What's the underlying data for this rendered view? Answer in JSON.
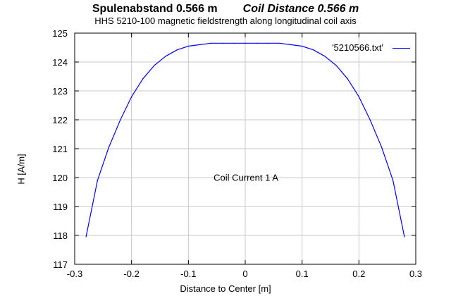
{
  "title": {
    "german": "Spulenabstand 0.566 m",
    "english": "Coil Distance 0.566 m"
  },
  "chart_data": {
    "type": "line",
    "title": "Spulenabstand 0.566 m     Coil Distance 0.566 m",
    "subtitle": "HHS 5210-100 magnetic fieldstrength along longitudinal coil axis",
    "xlabel": "Distance to Center [m]",
    "ylabel": "H [A/m]",
    "xlim": [
      -0.3,
      0.3
    ],
    "ylim": [
      117,
      125
    ],
    "xticks": [
      -0.3,
      -0.2,
      -0.1,
      0,
      0.1,
      0.2,
      0.3
    ],
    "xtick_labels": [
      "-0.3",
      "-0.2",
      "-0.1",
      "0",
      "0.1",
      "0.2",
      "0.3"
    ],
    "yticks": [
      117,
      118,
      119,
      120,
      121,
      122,
      123,
      124,
      125
    ],
    "ytick_labels": [
      "117",
      "118",
      "119",
      "120",
      "121",
      "122",
      "123",
      "124",
      "125"
    ],
    "grid": true,
    "legend_position": "top-right",
    "annotation": "Coil Current 1 A",
    "series": [
      {
        "name": "'5210566.txt'",
        "color": "#0000ff",
        "x": [
          -0.28,
          -0.26,
          -0.24,
          -0.22,
          -0.2,
          -0.18,
          -0.16,
          -0.14,
          -0.12,
          -0.1,
          -0.08,
          -0.06,
          -0.04,
          -0.02,
          0,
          0.02,
          0.04,
          0.06,
          0.08,
          0.1,
          0.12,
          0.14,
          0.16,
          0.18,
          0.2,
          0.22,
          0.24,
          0.26,
          0.28
        ],
        "y": [
          117.95,
          119.9,
          121.05,
          121.98,
          122.8,
          123.42,
          123.88,
          124.2,
          124.42,
          124.55,
          124.6,
          124.65,
          124.65,
          124.65,
          124.65,
          124.65,
          124.65,
          124.65,
          124.6,
          124.55,
          124.42,
          124.2,
          123.88,
          123.42,
          122.8,
          121.98,
          121.05,
          119.9,
          117.95
        ]
      }
    ]
  }
}
